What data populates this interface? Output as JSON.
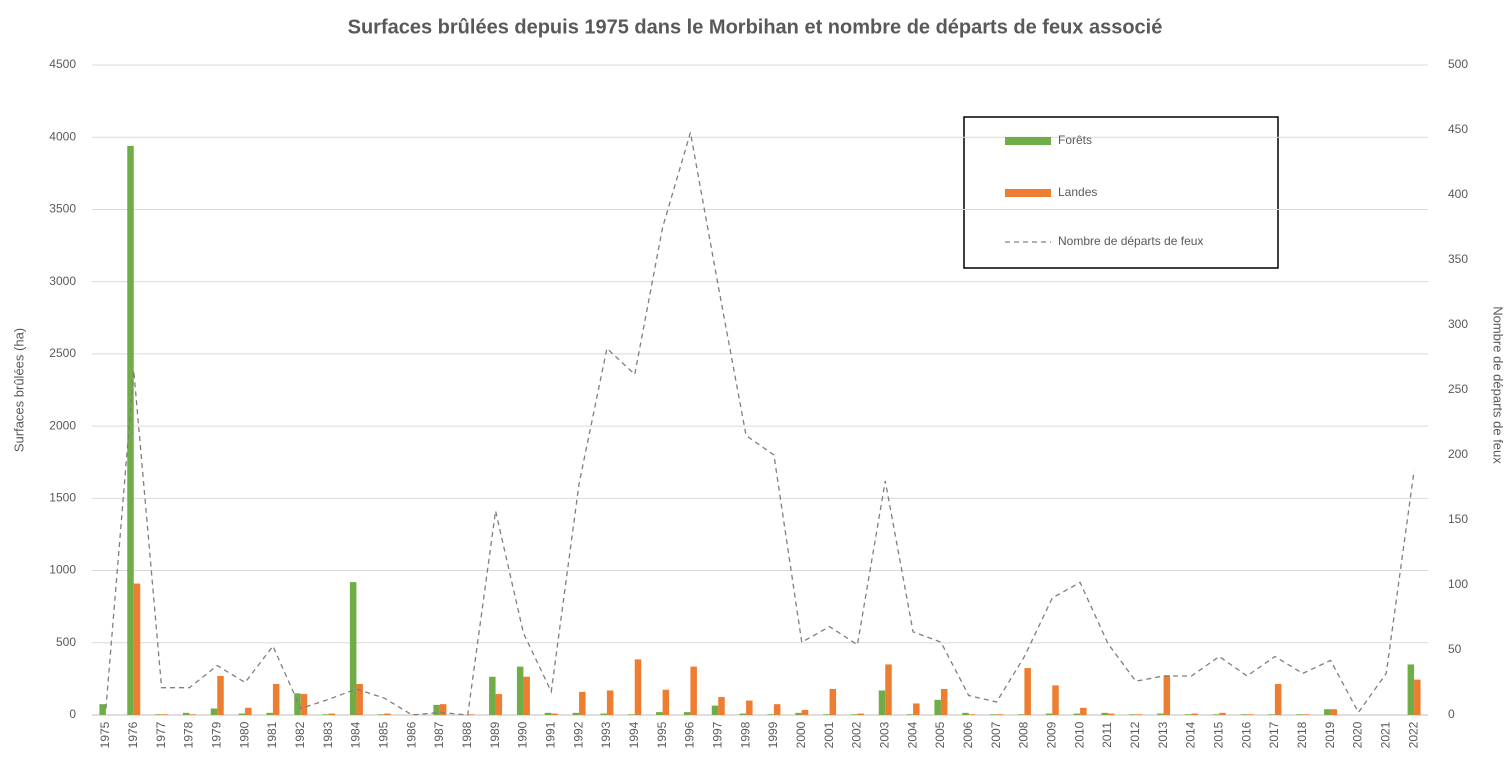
{
  "chart_data": {
    "type": "bar_line",
    "title": "Surfaces brûlées depuis 1975 dans le Morbihan et nombre de départs de feux associé",
    "ylabel": "Surfaces brûlées (ha)",
    "y2label": "Nombre de départs de feux",
    "categories": [
      "1975",
      "1976",
      "1977",
      "1978",
      "1979",
      "1980",
      "1981",
      "1982",
      "1983",
      "1984",
      "1985",
      "1986",
      "1987",
      "1988",
      "1989",
      "1990",
      "1991",
      "1992",
      "1993",
      "1994",
      "1995",
      "1996",
      "1997",
      "1998",
      "1999",
      "2000",
      "2001",
      "2002",
      "2003",
      "2004",
      "2005",
      "2006",
      "2007",
      "2008",
      "2009",
      "2010",
      "2011",
      "2012",
      "2013",
      "2014",
      "2015",
      "2016",
      "2017",
      "2018",
      "2019",
      "2020",
      "2021",
      "2022"
    ],
    "series": [
      {
        "name": "Forêts",
        "color": "#70ad47",
        "type": "bar",
        "values": [
          75,
          3940,
          5,
          15,
          45,
          10,
          15,
          150,
          5,
          920,
          5,
          0,
          70,
          0,
          265,
          335,
          15,
          15,
          10,
          5,
          20,
          20,
          65,
          10,
          5,
          15,
          5,
          5,
          170,
          5,
          105,
          15,
          5,
          5,
          10,
          10,
          15,
          5,
          10,
          5,
          5,
          5,
          5,
          5,
          40,
          0,
          0,
          350
        ]
      },
      {
        "name": "Landes",
        "color": "#ed7d31",
        "type": "bar",
        "values": [
          0,
          910,
          5,
          5,
          270,
          50,
          215,
          145,
          10,
          215,
          10,
          5,
          75,
          5,
          145,
          265,
          10,
          160,
          170,
          385,
          175,
          335,
          125,
          100,
          75,
          35,
          180,
          10,
          350,
          80,
          180,
          5,
          5,
          325,
          205,
          50,
          10,
          5,
          275,
          10,
          15,
          5,
          215,
          5,
          40,
          0,
          0,
          245
        ]
      },
      {
        "name": "Nombre de départs de feux",
        "color": "#7f7f7f",
        "type": "line",
        "axis": "y2",
        "dashed": true,
        "values": [
          5,
          265,
          21,
          21,
          38,
          25,
          53,
          5,
          12,
          20,
          13,
          0,
          2,
          0,
          157,
          63,
          18,
          178,
          282,
          262,
          375,
          448,
          330,
          215,
          200,
          56,
          68,
          54,
          180,
          64,
          56,
          15,
          10,
          45,
          90,
          102,
          55,
          26,
          30,
          30,
          45,
          30,
          45,
          32,
          42,
          2,
          32,
          188
        ]
      }
    ],
    "ylim": [
      0,
      4500
    ],
    "yticks": [
      0,
      500,
      1000,
      1500,
      2000,
      2500,
      3000,
      3500,
      4000,
      4500
    ],
    "y2lim": [
      0,
      500
    ],
    "y2ticks": [
      0,
      50,
      100,
      150,
      200,
      250,
      300,
      350,
      400,
      450,
      500
    ],
    "grid": true,
    "legend": "upper right"
  }
}
